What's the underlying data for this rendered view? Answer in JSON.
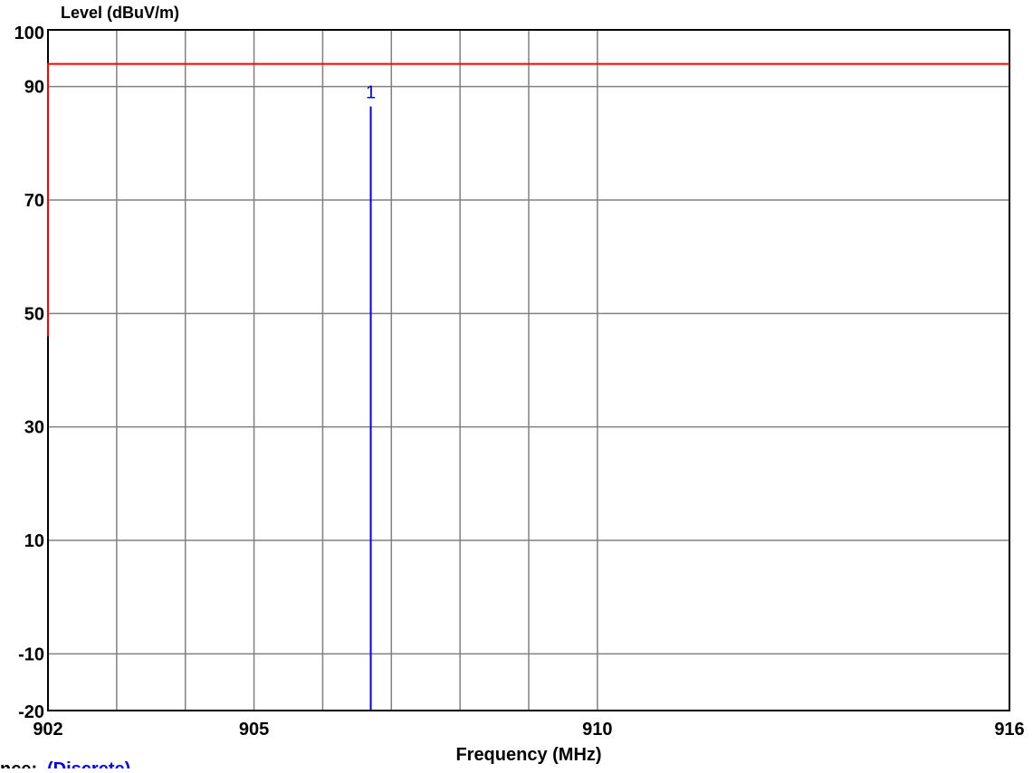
{
  "chart_data": {
    "type": "line",
    "ylabel": "Level (dBuV/m)",
    "xlabel": "Frequency (MHz)",
    "xlim": [
      902,
      916
    ],
    "ylim": [
      -20,
      100
    ],
    "x_tick_labels": [
      {
        "value": 902,
        "label": "902"
      },
      {
        "value": 905,
        "label": "905"
      },
      {
        "value": 910,
        "label": "910"
      },
      {
        "value": 916,
        "label": "916"
      }
    ],
    "y_tick_labels": [
      {
        "value": 100,
        "label": "100"
      },
      {
        "value": 90,
        "label": "90"
      },
      {
        "value": 70,
        "label": "70"
      },
      {
        "value": 50,
        "label": "50"
      },
      {
        "value": 30,
        "label": "30"
      },
      {
        "value": 10,
        "label": "10"
      },
      {
        "value": -10,
        "label": "-10"
      },
      {
        "value": -20,
        "label": "-20"
      }
    ],
    "grid": true,
    "x_gridlines": [
      903,
      904,
      905,
      906,
      907,
      908,
      909,
      910
    ],
    "y_gridlines": [
      90,
      70,
      50,
      30,
      10,
      -10
    ],
    "series": [
      {
        "color": "#ff0000",
        "x": [
          902,
          902,
          916
        ],
        "y": [
          46,
          94,
          94
        ]
      }
    ],
    "markers": [
      {
        "label": "1",
        "x": 906.7,
        "y": 86.5,
        "color": "#0000ff"
      }
    ],
    "footer_partial": {
      "prefix": "nce:",
      "value": "(Discrete)",
      "value_color": "#0000ff"
    }
  }
}
